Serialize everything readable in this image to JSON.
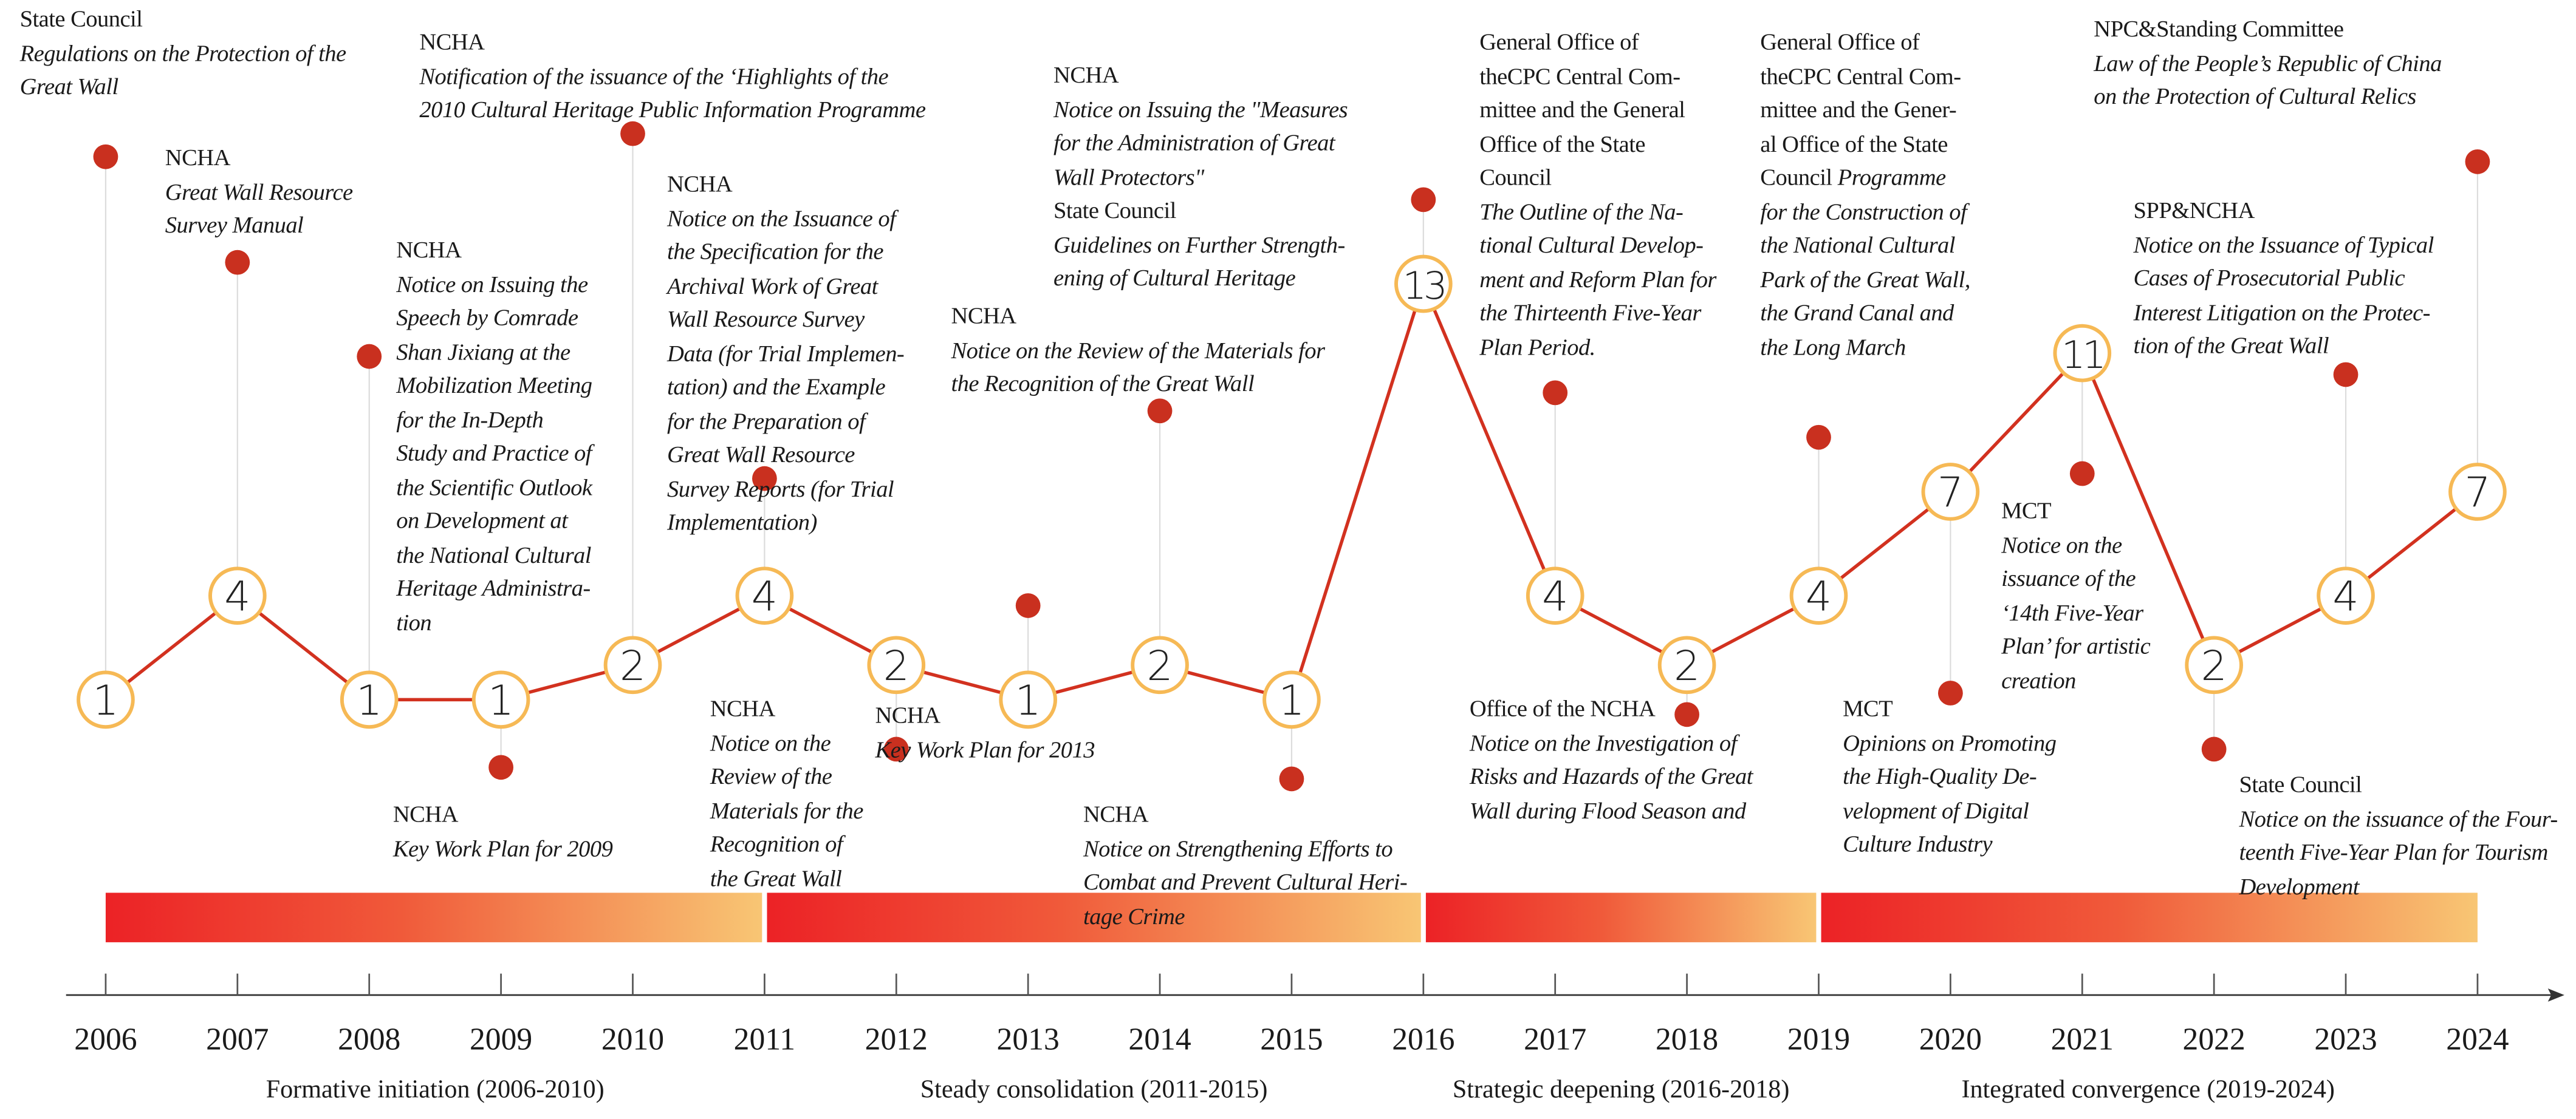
{
  "chart_data": {
    "type": "line",
    "title": "",
    "xlabel": "",
    "ylabel": "",
    "x": [
      2006,
      2007,
      2008,
      2009,
      2010,
      2011,
      2012,
      2013,
      2014,
      2015,
      2016,
      2017,
      2018,
      2019,
      2020,
      2021,
      2022,
      2023,
      2024
    ],
    "values": [
      1,
      4,
      1,
      1,
      2,
      4,
      2,
      1,
      2,
      1,
      13,
      4,
      2,
      4,
      7,
      11,
      2,
      4,
      7
    ],
    "ylim": [
      0,
      14
    ],
    "grid": false,
    "phases": [
      {
        "label": "Formative initiation (2006-2010)",
        "start": 2006,
        "end": 2011
      },
      {
        "label": "Steady consolidation (2011-2015)",
        "start": 2011,
        "end": 2016
      },
      {
        "label": "Strategic deepening (2016-2018)",
        "start": 2016,
        "end": 2019
      },
      {
        "label": "Integrated convergence (2019-2024)",
        "start": 2019,
        "end": 2024
      }
    ],
    "colors": {
      "line": "#d2311f",
      "circle_stroke": "#f6b955",
      "dot": "#c9301f",
      "gradient_start": "#ec2226",
      "gradient_end": "#f8c674",
      "stem": "#dcdcdc"
    }
  },
  "annotations": [
    {
      "year": 2006,
      "side": "above",
      "lines": [
        {
          "r": "State Council"
        },
        {
          "i": "Regulations on the Protection of the"
        },
        {
          "i": "Great Wall"
        }
      ]
    },
    {
      "year": 2007,
      "side": "above",
      "lines": [
        {
          "r": "NCHA"
        },
        {
          "i": "Great Wall Resource"
        },
        {
          "i": "Survey Manual"
        }
      ]
    },
    {
      "year": 2008,
      "side": "above",
      "lines": [
        {
          "r": "NCHA"
        },
        {
          "i": "Notice on Issuing the"
        },
        {
          "i": "Speech by Comrade"
        },
        {
          "i": "Shan Jixiang at the"
        },
        {
          "i": "Mobilization Meeting"
        },
        {
          "i": "for the In-Depth"
        },
        {
          "i": "Study and Practice of"
        },
        {
          "i": "the Scientific Outlook"
        },
        {
          "i": "on Development at"
        },
        {
          "i": "the National Cultural"
        },
        {
          "i": "Heritage Administra-"
        },
        {
          "i": "tion"
        }
      ]
    },
    {
      "year": 2009,
      "side": "below",
      "lines": [
        {
          "r": "NCHA"
        },
        {
          "i": "Key Work Plan for 2009"
        }
      ]
    },
    {
      "year": 2010,
      "side": "above",
      "lines": [
        {
          "r": "NCHA"
        },
        {
          "i": "Notification of the issuance of the ‘Highlights of the"
        },
        {
          "i": "2010 Cultural Heritage Public Information Programme"
        }
      ]
    },
    {
      "year": 2011,
      "side": "above",
      "lines": [
        {
          "r": "NCHA"
        },
        {
          "i": "Notice on the Issuance of"
        },
        {
          "i": "the Specification for the"
        },
        {
          "i": "Archival Work of Great"
        },
        {
          "i": "Wall Resource Survey"
        },
        {
          "i": "Data (for Trial Implemen-"
        },
        {
          "i": "tation) and the Example"
        },
        {
          "i": "for the Preparation of"
        },
        {
          "i": "Great Wall Resource"
        },
        {
          "i": "Survey Reports (for Trial"
        },
        {
          "i": "Implementation)"
        }
      ]
    },
    {
      "year": 2012,
      "side": "below",
      "lines": [
        {
          "r": "NCHA"
        },
        {
          "i": "Notice on the"
        },
        {
          "i": "Review of the"
        },
        {
          "i": "Materials for the"
        },
        {
          "i": "Recognition of"
        },
        {
          "i": "the Great Wall"
        }
      ]
    },
    {
      "year": 2013,
      "side": "above",
      "lines": [
        {
          "r": "NCHA"
        },
        {
          "i": "Key Work Plan for 2013"
        }
      ]
    },
    {
      "year": 2014,
      "side": "above",
      "lines": [
        {
          "r": "NCHA"
        },
        {
          "i": "Notice on the Review of the Materials for"
        },
        {
          "i": "the Recognition of the Great Wall"
        }
      ]
    },
    {
      "year": 2015,
      "side": "below",
      "lines": [
        {
          "r": "NCHA"
        },
        {
          "i": "Notice on Strengthening Efforts to"
        },
        {
          "i": "Combat and Prevent Cultural Heri-"
        },
        {
          "i": "tage Crime"
        }
      ]
    },
    {
      "year": 2016,
      "side": "above",
      "lines": [
        {
          "r": "NCHA"
        },
        {
          "i": "Notice on Issuing the \"Measures"
        },
        {
          "i": "for the Administration of Great"
        },
        {
          "i": "Wall Protectors\""
        },
        {
          "r": "State Council"
        },
        {
          "i": "Guidelines on Further Strength-"
        },
        {
          "i": "ening of Cultural Heritage"
        }
      ]
    },
    {
      "year": 2017,
      "side": "above",
      "lines": [
        {
          "r": "General Office of"
        },
        {
          "r": "theCPC Central Com-"
        },
        {
          "r": "mittee and the General"
        },
        {
          "r": "Office of the State"
        },
        {
          "r": "Council"
        },
        {
          "i": "The Outline of the Na-"
        },
        {
          "i": "tional Cultural Develop-"
        },
        {
          "i": "ment and Reform Plan for"
        },
        {
          "i": "the Thirteenth Five-Year"
        },
        {
          "i": "Plan Period."
        }
      ]
    },
    {
      "year": 2018,
      "side": "below",
      "lines": [
        {
          "r": "Office of the NCHA"
        },
        {
          "i": "Notice on the Investigation of"
        },
        {
          "i": "Risks and Hazards of the Great"
        },
        {
          "i": "Wall during Flood Season and"
        }
      ]
    },
    {
      "year": 2019,
      "side": "above",
      "lines": [
        {
          "r": "General Office of"
        },
        {
          "r": "theCPC Central Com-"
        },
        {
          "r": "mittee and the Gener-"
        },
        {
          "r": "al Office of the State"
        },
        {
          "r": "Council ",
          "i": "Programme"
        },
        {
          "i": "for the Construction of"
        },
        {
          "i": "the National Cultural"
        },
        {
          "i": "Park of the Great Wall,"
        },
        {
          "i": "the Grand Canal and"
        },
        {
          "i": "the Long March"
        }
      ]
    },
    {
      "year": 2020,
      "side": "below",
      "lines": [
        {
          "r": "MCT"
        },
        {
          "i": "Opinions on Promoting"
        },
        {
          "i": "the High-Quality De-"
        },
        {
          "i": "velopment of Digital"
        },
        {
          "i": "Culture Industry"
        }
      ]
    },
    {
      "year": 2021,
      "side": "below",
      "lines": [
        {
          "r": "MCT"
        },
        {
          "i": "Notice on the"
        },
        {
          "i": "issuance of the"
        },
        {
          "i": "‘14th Five-Year"
        },
        {
          "i": "Plan’ for artistic"
        },
        {
          "i": "creation"
        }
      ]
    },
    {
      "year": 2022,
      "side": "below",
      "lines": [
        {
          "r": "State Council"
        },
        {
          "i": "Notice on the issuance of the Four-"
        },
        {
          "i": "teenth Five-Year Plan for Tourism"
        },
        {
          "i": "Development"
        }
      ]
    },
    {
      "year": 2023,
      "side": "above",
      "lines": [
        {
          "r": "SPP&NCHA"
        },
        {
          "i": "Notice on the Issuance of Typical"
        },
        {
          "i": "Cases of Prosecutorial Public"
        },
        {
          "i": "Interest Litigation on the Protec-"
        },
        {
          "i": "tion of the Great Wall"
        }
      ]
    },
    {
      "year": 2024,
      "side": "above",
      "lines": [
        {
          "r": "NPC&Standing Committee"
        },
        {
          "i": "Law of the People’s Republic of China"
        },
        {
          "i": "on the Protection of Cultural Relics"
        }
      ]
    }
  ]
}
